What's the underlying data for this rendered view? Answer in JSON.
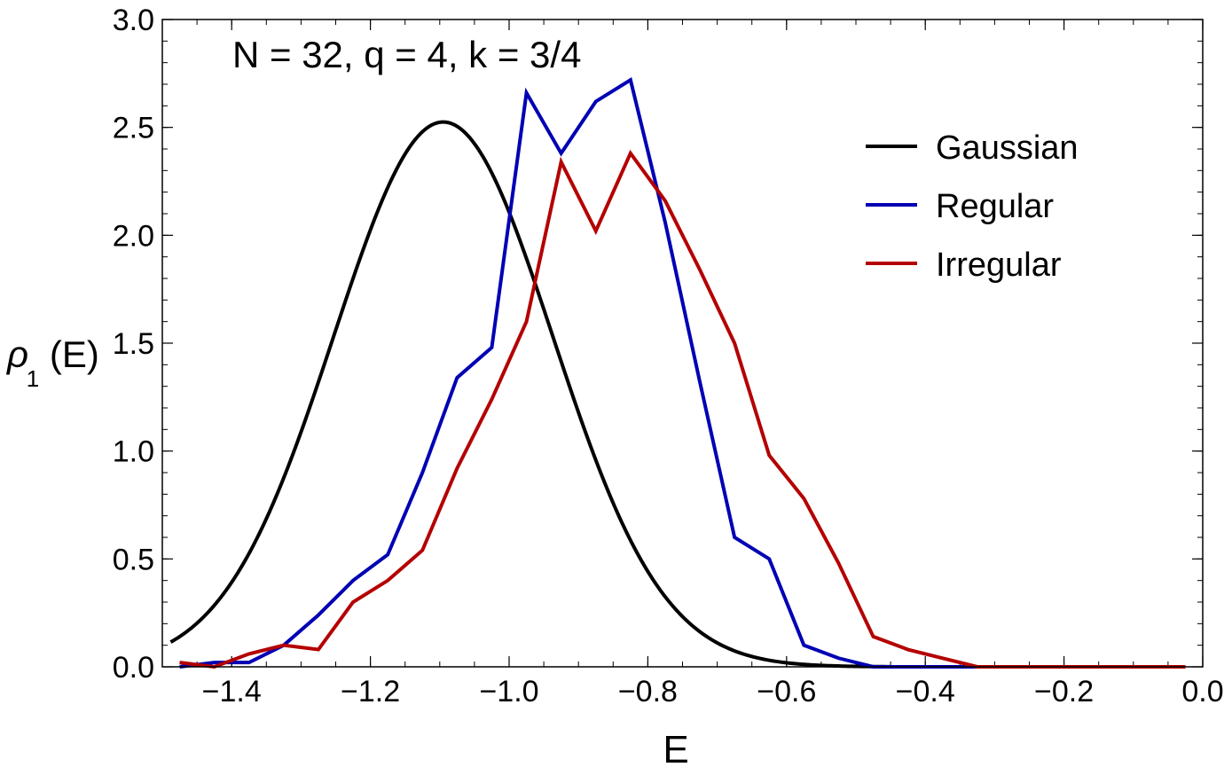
{
  "chart_data": {
    "type": "line",
    "title": "N = 32, q = 4, k = 3/4",
    "xlabel": "E",
    "ylabel": {
      "rho": "ρ",
      "sub": "1",
      "tail": "(E)"
    },
    "xlim": [
      -1.5,
      0.0
    ],
    "ylim": [
      0.0,
      3.0
    ],
    "xticks": [
      {
        "value": -1.4,
        "label": "−1.4"
      },
      {
        "value": -1.2,
        "label": "−1.2"
      },
      {
        "value": -1.0,
        "label": "−1.0"
      },
      {
        "value": -0.8,
        "label": "−0.8"
      },
      {
        "value": -0.6,
        "label": "−0.6"
      },
      {
        "value": -0.4,
        "label": "−0.4"
      },
      {
        "value": -0.2,
        "label": "−0.2"
      },
      {
        "value": 0.0,
        "label": "0.0"
      }
    ],
    "yticks": [
      {
        "value": 0.0,
        "label": "0.0"
      },
      {
        "value": 0.5,
        "label": "0.5"
      },
      {
        "value": 1.0,
        "label": "1.0"
      },
      {
        "value": 1.5,
        "label": "1.5"
      },
      {
        "value": 2.0,
        "label": "2.0"
      },
      {
        "value": 2.5,
        "label": "2.5"
      },
      {
        "value": 3.0,
        "label": "3.0"
      }
    ],
    "legend_position": "top-right",
    "gaussian": {
      "name": "Gaussian",
      "color": "#000000",
      "mean": -1.095,
      "sigma": 0.158,
      "peak": 2.525
    },
    "series": [
      {
        "name": "Regular",
        "color": "#0000b4",
        "x": [
          -1.475,
          -1.425,
          -1.375,
          -1.325,
          -1.275,
          -1.225,
          -1.175,
          -1.125,
          -1.075,
          -1.025,
          -0.975,
          -0.925,
          -0.875,
          -0.825,
          -0.775,
          -0.725,
          -0.675,
          -0.625,
          -0.575,
          -0.525,
          -0.475,
          -0.425,
          -0.375,
          -0.325,
          -0.275,
          -0.225,
          -0.175,
          -0.125,
          -0.075,
          -0.025
        ],
        "y": [
          0.0,
          0.02,
          0.02,
          0.1,
          0.24,
          0.4,
          0.52,
          0.9,
          1.34,
          1.48,
          2.66,
          2.38,
          2.62,
          2.72,
          2.06,
          1.32,
          0.6,
          0.5,
          0.1,
          0.04,
          0.0,
          0.0,
          0.0,
          0.0,
          0.0,
          0.0,
          0.0,
          0.0,
          0.0,
          0.0
        ]
      },
      {
        "name": "Irregular",
        "color": "#b40000",
        "x": [
          -1.475,
          -1.425,
          -1.375,
          -1.325,
          -1.275,
          -1.225,
          -1.175,
          -1.125,
          -1.075,
          -1.025,
          -0.975,
          -0.925,
          -0.875,
          -0.825,
          -0.775,
          -0.725,
          -0.675,
          -0.625,
          -0.575,
          -0.525,
          -0.475,
          -0.425,
          -0.375,
          -0.325,
          -0.275,
          -0.225,
          -0.175,
          -0.125,
          -0.075,
          -0.025
        ],
        "y": [
          0.02,
          0.0,
          0.06,
          0.1,
          0.08,
          0.3,
          0.4,
          0.54,
          0.92,
          1.24,
          1.6,
          2.34,
          2.02,
          2.38,
          2.16,
          1.84,
          1.5,
          0.98,
          0.78,
          0.48,
          0.14,
          0.08,
          0.04,
          0.0,
          0.0,
          0.0,
          0.0,
          0.0,
          0.0,
          0.0
        ]
      }
    ]
  }
}
